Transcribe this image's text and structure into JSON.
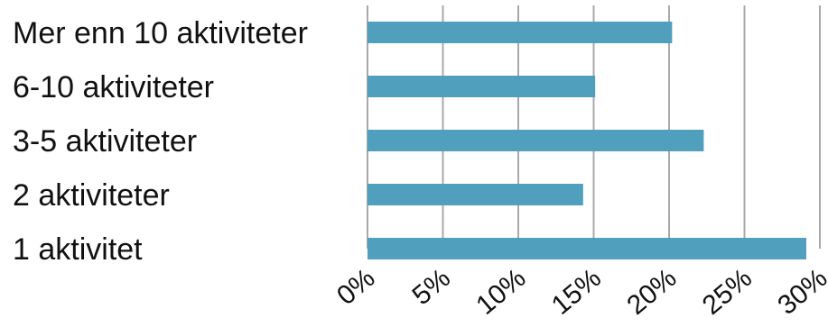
{
  "chart_data": {
    "type": "bar",
    "orientation": "horizontal",
    "categories": [
      "Mer enn 10 aktiviteter",
      "6-10 aktiviteter",
      "3-5 aktiviteter",
      "2 aktiviteter",
      "1 aktivitet"
    ],
    "values": [
      20.2,
      15.1,
      22.3,
      14.3,
      29.1
    ],
    "xlim": [
      0,
      30
    ],
    "xticks": [
      0,
      5,
      10,
      15,
      20,
      25,
      30
    ],
    "xtick_labels": [
      "0%",
      "5%",
      "10%",
      "15%",
      "20%",
      "25%",
      "30%"
    ],
    "title": "",
    "xlabel": "",
    "ylabel": "",
    "grid": "vertical",
    "legend": "none",
    "bar_color": "#4f9fbd",
    "grid_color": "#a9a9a9"
  }
}
